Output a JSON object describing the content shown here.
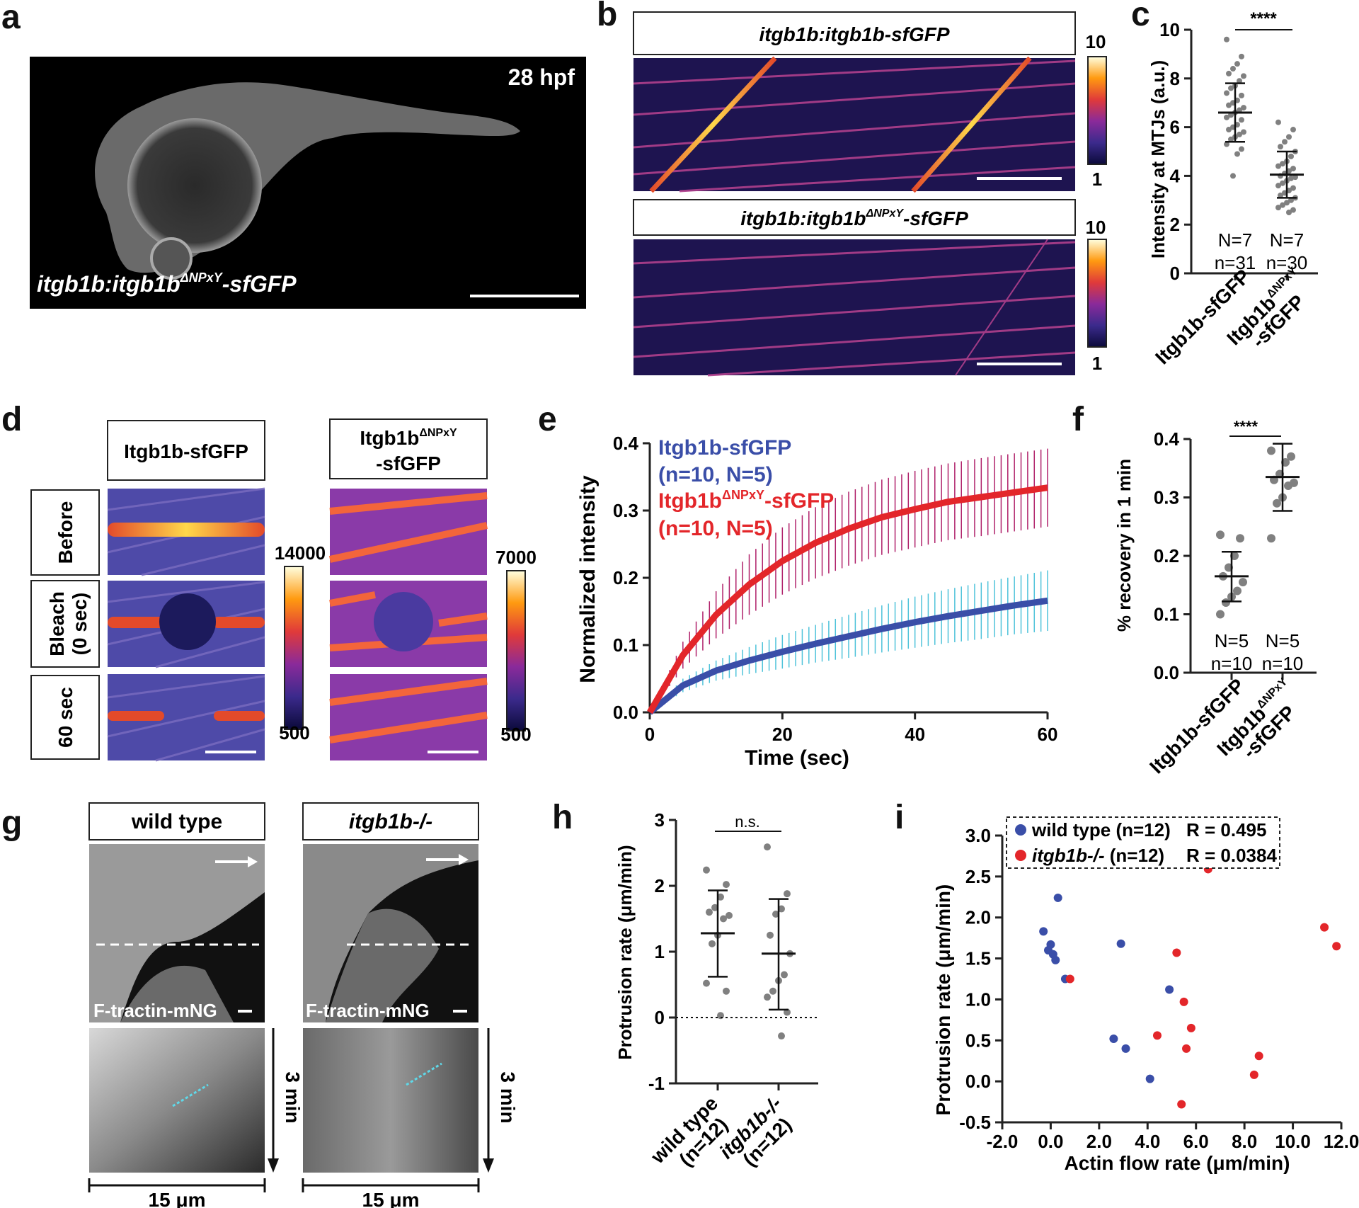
{
  "colors": {
    "wt_blue": "#3a4ea8",
    "mut_red": "#e3262a",
    "err_cyan": "#4fc3da",
    "err_magenta": "#b0216a",
    "dot_gray": "#808080"
  },
  "panels": {
    "a": "a",
    "b": "b",
    "c": "c",
    "d": "d",
    "e": "e",
    "f": "f",
    "g": "g",
    "h": "h",
    "i": "i"
  },
  "a": {
    "time": "28 hpf",
    "label_main": "itgb1b:itgb1b",
    "label_sup": "ΔNPxY",
    "label_end": "-sfGFP"
  },
  "b": {
    "top_label": "itgb1b:itgb1b-sfGFP",
    "bottom_main": "itgb1b:itgb1b",
    "bottom_sup": "ΔNPxY",
    "bottom_end": "-sfGFP",
    "scale_max": "10",
    "scale_min": "1"
  },
  "c": {
    "ylabel": "Intensity at MTJs (a.u.)",
    "sig": "****",
    "yticks": [
      "0",
      "2",
      "4",
      "6",
      "8",
      "10"
    ],
    "groups": [
      {
        "name": "Itgb1b-sfGFP",
        "N": "N=7",
        "n": "n=31"
      },
      {
        "name_main": "Itgb1b",
        "name_sup": "ΔNPxY",
        "name_end": "-sfGFP",
        "N": "N=7",
        "n": "n=30"
      }
    ]
  },
  "d": {
    "col1": "Itgb1b-sfGFP",
    "col2_main": "Itgb1b",
    "col2_sup": "ΔNPxY",
    "col2_end": "-sfGFP",
    "rows": [
      "Before",
      "Bleach (0 sec)",
      "60 sec"
    ],
    "row2_line1": "Bleach",
    "row2_line2": "(0 sec)",
    "scale1_max": "14000",
    "scale1_min": "500",
    "scale2_max": "7000",
    "scale2_min": "500"
  },
  "e": {
    "ylabel": "Normalized intensity",
    "xlabel": "Time (sec)",
    "xticks": [
      "0",
      "20",
      "40",
      "60"
    ],
    "yticks": [
      "0.0",
      "0.1",
      "0.2",
      "0.3",
      "0.4"
    ],
    "legend1": "Itgb1b-sfGFP",
    "legend1_n": "(n=10, N=5)",
    "legend2_main": "Itgb1b",
    "legend2_sup": "ΔNPxY",
    "legend2_end": "-sfGFP",
    "legend2_n": "(n=10, N=5)"
  },
  "f": {
    "ylabel": "% recovery in 1 min",
    "sig": "****",
    "yticks": [
      "0.0",
      "0.1",
      "0.2",
      "0.3",
      "0.4"
    ],
    "groups": [
      {
        "name": "Itgb1b-sfGFP",
        "N": "N=5",
        "n": "n=10"
      },
      {
        "name_main": "Itgb1b",
        "name_sup": "ΔNPxY",
        "name_end": "-sfGFP",
        "N": "N=5",
        "n": "n=10"
      }
    ]
  },
  "g": {
    "col1": "wild type",
    "col2": "itgb1b-/-",
    "caption": "F-tractin-mNG",
    "time": "3 min",
    "scale": "15 μm"
  },
  "h": {
    "ylabel": "Protrusion rate (μm/min)",
    "sig": "n.s.",
    "yticks": [
      "-1",
      "0",
      "1",
      "2",
      "3"
    ],
    "groups": [
      {
        "name": "wild type",
        "n": "(n=12)"
      },
      {
        "name": "itgb1b-/-",
        "n": "(n=12)"
      }
    ]
  },
  "i": {
    "ylabel": "Protrusion rate (μm/min)",
    "xlabel": "Actin flow rate (μm/min)",
    "legend1": "wild type (n=12)",
    "r1": "R = 0.495",
    "legend2_it": "itgb1b-/-",
    "legend2_n": " (n=12)",
    "r2": "R = 0.0384",
    "xticks": [
      "-2.0",
      "0.0",
      "2.0",
      "4.0",
      "6.0",
      "8.0",
      "10.0",
      "12.0"
    ],
    "yticks": [
      "-0.5",
      "0.0",
      "0.5",
      "1.0",
      "1.5",
      "2.0",
      "2.5",
      "3.0"
    ]
  },
  "chart_data": [
    {
      "panel": "c",
      "type": "scatter",
      "title": "",
      "ylabel": "Intensity at MTJs (a.u.)",
      "ylim": [
        0,
        10
      ],
      "categories": [
        "Itgb1b-sfGFP",
        "Itgb1b ΔNPxY -sfGFP"
      ],
      "means": [
        6.6,
        4.05
      ],
      "sd": [
        [
          5.4,
          7.8
        ],
        [
          3.1,
          5.0
        ]
      ],
      "series": [
        {
          "name": "Itgb1b-sfGFP",
          "values": [
            9.6,
            8.9,
            8.6,
            8.4,
            8.2,
            8.1,
            7.9,
            7.7,
            7.6,
            7.4,
            7.3,
            7.1,
            7.0,
            6.9,
            6.8,
            6.7,
            6.6,
            6.5,
            6.4,
            6.3,
            6.1,
            6.0,
            5.9,
            5.8,
            5.7,
            5.6,
            5.5,
            5.3,
            5.1,
            4.9,
            4.0
          ]
        },
        {
          "name": "Itgb1b ΔNPxY -sfGFP",
          "values": [
            6.2,
            5.9,
            5.6,
            5.4,
            5.2,
            5.0,
            4.8,
            4.6,
            4.5,
            4.4,
            4.3,
            4.2,
            4.1,
            4.0,
            3.95,
            3.9,
            3.8,
            3.7,
            3.6,
            3.5,
            3.4,
            3.3,
            3.2,
            3.1,
            3.0,
            2.9,
            2.8,
            2.7,
            2.6,
            2.5
          ]
        }
      ]
    },
    {
      "panel": "e",
      "type": "line",
      "xlabel": "Time (sec)",
      "ylabel": "Normalized intensity",
      "xlim": [
        0,
        60
      ],
      "ylim": [
        0,
        0.4
      ],
      "series": [
        {
          "name": "Itgb1b-sfGFP",
          "x": [
            0,
            5,
            10,
            15,
            20,
            25,
            30,
            35,
            40,
            45,
            50,
            55,
            60
          ],
          "values": [
            0,
            0.04,
            0.062,
            0.077,
            0.09,
            0.102,
            0.113,
            0.124,
            0.134,
            0.143,
            0.151,
            0.159,
            0.166
          ],
          "err": [
            0,
            0.01,
            0.015,
            0.02,
            0.025,
            0.028,
            0.032,
            0.035,
            0.038,
            0.04,
            0.042,
            0.043,
            0.045
          ]
        },
        {
          "name": "Itgb1b ΔNPxY -sfGFP",
          "x": [
            0,
            5,
            10,
            15,
            20,
            25,
            30,
            35,
            40,
            45,
            50,
            55,
            60
          ],
          "values": [
            0,
            0.085,
            0.145,
            0.19,
            0.225,
            0.252,
            0.273,
            0.29,
            0.302,
            0.313,
            0.32,
            0.327,
            0.334
          ],
          "err": [
            0,
            0.02,
            0.035,
            0.045,
            0.05,
            0.053,
            0.055,
            0.056,
            0.057,
            0.057,
            0.058,
            0.058,
            0.058
          ]
        }
      ]
    },
    {
      "panel": "f",
      "type": "scatter",
      "ylabel": "% recovery in 1 min",
      "ylim": [
        0,
        0.4
      ],
      "categories": [
        "Itgb1b-sfGFP",
        "Itgb1b ΔNPxY -sfGFP"
      ],
      "means": [
        0.165,
        0.335
      ],
      "sd": [
        [
          0.122,
          0.207
        ],
        [
          0.277,
          0.392
        ]
      ],
      "series": [
        {
          "name": "Itgb1b-sfGFP",
          "values": [
            0.236,
            0.23,
            0.2,
            0.18,
            0.165,
            0.155,
            0.14,
            0.13,
            0.12,
            0.1
          ]
        },
        {
          "name": "Itgb1b ΔNPxY -sfGFP",
          "values": [
            0.38,
            0.37,
            0.36,
            0.34,
            0.33,
            0.325,
            0.32,
            0.3,
            0.29,
            0.23
          ]
        }
      ]
    },
    {
      "panel": "h",
      "type": "scatter",
      "ylabel": "Protrusion rate (μm/min)",
      "ylim": [
        -1,
        3
      ],
      "categories": [
        "wild type (n=12)",
        "itgb1b-/- (n=12)"
      ],
      "means": [
        1.28,
        0.97
      ],
      "sd": [
        [
          0.62,
          1.93
        ],
        [
          0.12,
          1.8
        ]
      ],
      "series": [
        {
          "name": "wild type",
          "values": [
            2.24,
            2.02,
            1.83,
            1.67,
            1.6,
            1.55,
            1.5,
            1.25,
            1.12,
            0.52,
            0.4,
            0.03
          ]
        },
        {
          "name": "itgb1b-/-",
          "values": [
            2.59,
            1.88,
            1.65,
            1.57,
            1.25,
            0.97,
            0.65,
            0.56,
            0.4,
            0.31,
            0.08,
            -0.28
          ]
        }
      ]
    },
    {
      "panel": "i",
      "type": "scatter",
      "xlabel": "Actin flow rate (μm/min)",
      "ylabel": "Protrusion rate (μm/min)",
      "xlim": [
        -2,
        12
      ],
      "ylim": [
        -0.5,
        3
      ],
      "series": [
        {
          "name": "wild type (n=12)",
          "R": 0.495,
          "x": [
            -0.3,
            -0.1,
            0.0,
            0.1,
            0.2,
            0.3,
            0.6,
            2.9,
            3.1,
            2.6,
            4.1,
            4.9
          ],
          "y": [
            1.83,
            1.6,
            1.67,
            1.55,
            1.48,
            2.24,
            1.25,
            1.68,
            0.4,
            0.52,
            0.03,
            1.12
          ]
        },
        {
          "name": "itgb1b-/- (n=12)",
          "R": 0.0384,
          "x": [
            0.8,
            6.5,
            11.3,
            11.8,
            5.2,
            5.5,
            5.8,
            4.4,
            5.6,
            8.6,
            8.4,
            5.4
          ],
          "y": [
            1.25,
            2.59,
            1.88,
            1.65,
            1.57,
            0.97,
            0.65,
            0.56,
            0.4,
            0.31,
            0.08,
            -0.28
          ]
        }
      ]
    }
  ]
}
